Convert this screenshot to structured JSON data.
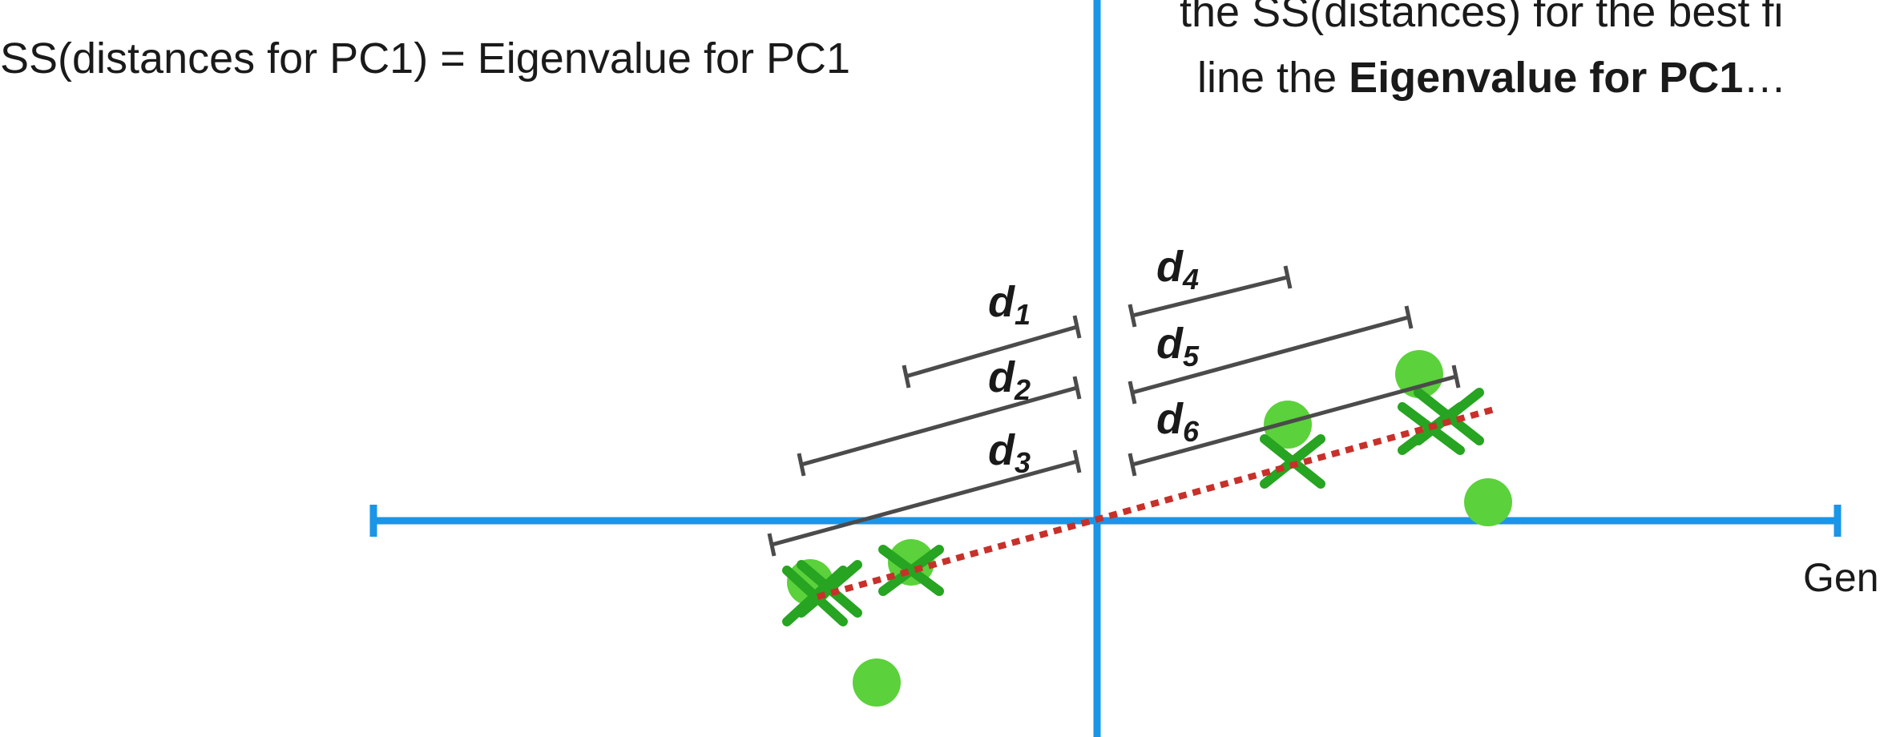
{
  "text": {
    "left_equation": "SS(distances for PC1) = Eigenvalue for PC1",
    "right_line1": "the SS(distances) for the best fi",
    "right_line2_prefix": "line the ",
    "right_line2_bold": "Eigenvalue for PC1",
    "right_line2_suffix": "…",
    "axis_label": "Gen"
  },
  "distance_labels": [
    {
      "base": "d",
      "sub": "1"
    },
    {
      "base": "d",
      "sub": "2"
    },
    {
      "base": "d",
      "sub": "3"
    },
    {
      "base": "d",
      "sub": "4"
    },
    {
      "base": "d",
      "sub": "5"
    },
    {
      "base": "d",
      "sub": "6"
    }
  ],
  "colors": {
    "axis": "#1b95e6",
    "point": "#5bd13b",
    "projection_x": "#27a421",
    "fit_line": "#c8302a",
    "distance_bar": "#4b4b4b",
    "text": "#1a1a1a"
  }
}
